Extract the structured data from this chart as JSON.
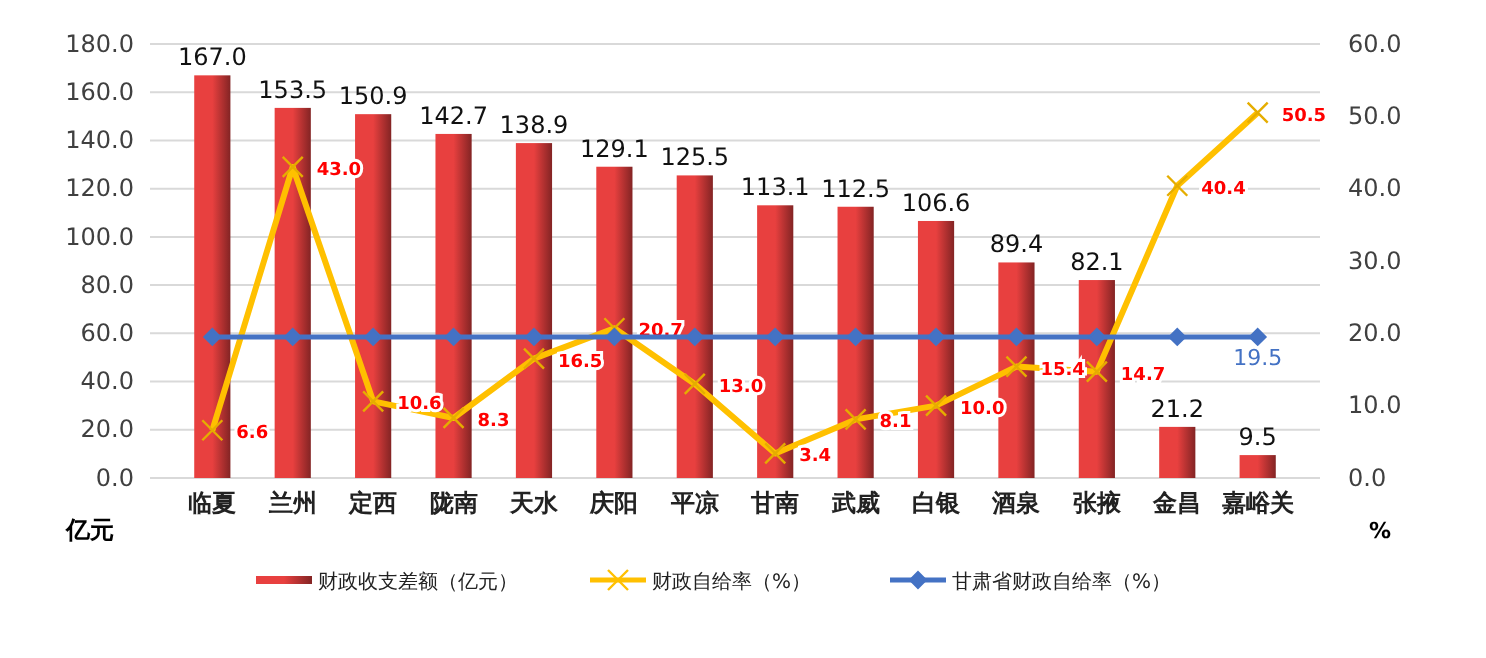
{
  "chart_data": {
    "type": "bar",
    "categories": [
      "临夏",
      "兰州",
      "定西",
      "陇南",
      "天水",
      "庆阳",
      "平凉",
      "甘南",
      "武威",
      "白银",
      "酒泉",
      "张掖",
      "金昌",
      "嘉峪关"
    ],
    "ylabel": "亿元",
    "y2label": "%",
    "ylim": [
      0,
      180
    ],
    "yticks": [
      {
        "value": 0,
        "label": "0.0"
      },
      {
        "value": 20,
        "label": "20.0"
      },
      {
        "value": 40,
        "label": "40.0"
      },
      {
        "value": 60,
        "label": "60.0"
      },
      {
        "value": 80,
        "label": "80.0"
      },
      {
        "value": 100,
        "label": "100.0"
      },
      {
        "value": 120,
        "label": "120.0"
      },
      {
        "value": 140,
        "label": "140.0"
      },
      {
        "value": 160,
        "label": "160.0"
      },
      {
        "value": 180,
        "label": "180.0"
      }
    ],
    "y2lim": [
      0,
      60
    ],
    "y2ticks": [
      {
        "value": 0,
        "label": "0.0"
      },
      {
        "value": 10,
        "label": "10.0"
      },
      {
        "value": 20,
        "label": "20.0"
      },
      {
        "value": 30,
        "label": "30.0"
      },
      {
        "value": 40,
        "label": "40.0"
      },
      {
        "value": 50,
        "label": "50.0"
      },
      {
        "value": 60,
        "label": "60.0"
      }
    ],
    "grid": "y",
    "legend": "bottom",
    "series": [
      {
        "name": "财政收支差额（亿元）",
        "color": "#e8403f",
        "values": [
          167.0,
          153.5,
          150.9,
          142.7,
          138.9,
          129.1,
          125.5,
          113.1,
          112.5,
          106.6,
          89.4,
          82.1,
          21.2,
          9.5
        ],
        "value_labels": [
          "167.0",
          "153.5",
          "150.9",
          "142.7",
          "138.9",
          "129.1",
          "125.5",
          "113.1",
          "112.5",
          "106.6",
          "89.4",
          "82.1",
          "21.2",
          "9.5"
        ]
      },
      {
        "name": "财政自给率（%）",
        "type": "line",
        "axis": "y2",
        "color": "#ffc000",
        "marker": "cross",
        "values": [
          6.6,
          43.0,
          10.6,
          8.3,
          16.5,
          20.7,
          13.0,
          3.4,
          8.1,
          10.0,
          15.4,
          14.7,
          40.4,
          50.5
        ],
        "value_labels": [
          "6.6",
          "43.0",
          "10.6",
          "8.3",
          "16.5",
          "20.7",
          "13.0",
          "3.4",
          "8.1",
          "10.0",
          "15.4",
          "14.7",
          "40.4",
          "50.5"
        ]
      },
      {
        "name": "甘肃省财政自给率（%）",
        "type": "line",
        "axis": "y2",
        "color": "#4472c4",
        "marker": "diamond",
        "values": [
          19.5,
          19.5,
          19.5,
          19.5,
          19.5,
          19.5,
          19.5,
          19.5,
          19.5,
          19.5,
          19.5,
          19.5,
          19.5,
          19.5
        ],
        "value_labels": [
          null,
          null,
          null,
          null,
          null,
          null,
          null,
          null,
          null,
          null,
          null,
          null,
          null,
          "19.5"
        ]
      }
    ]
  }
}
